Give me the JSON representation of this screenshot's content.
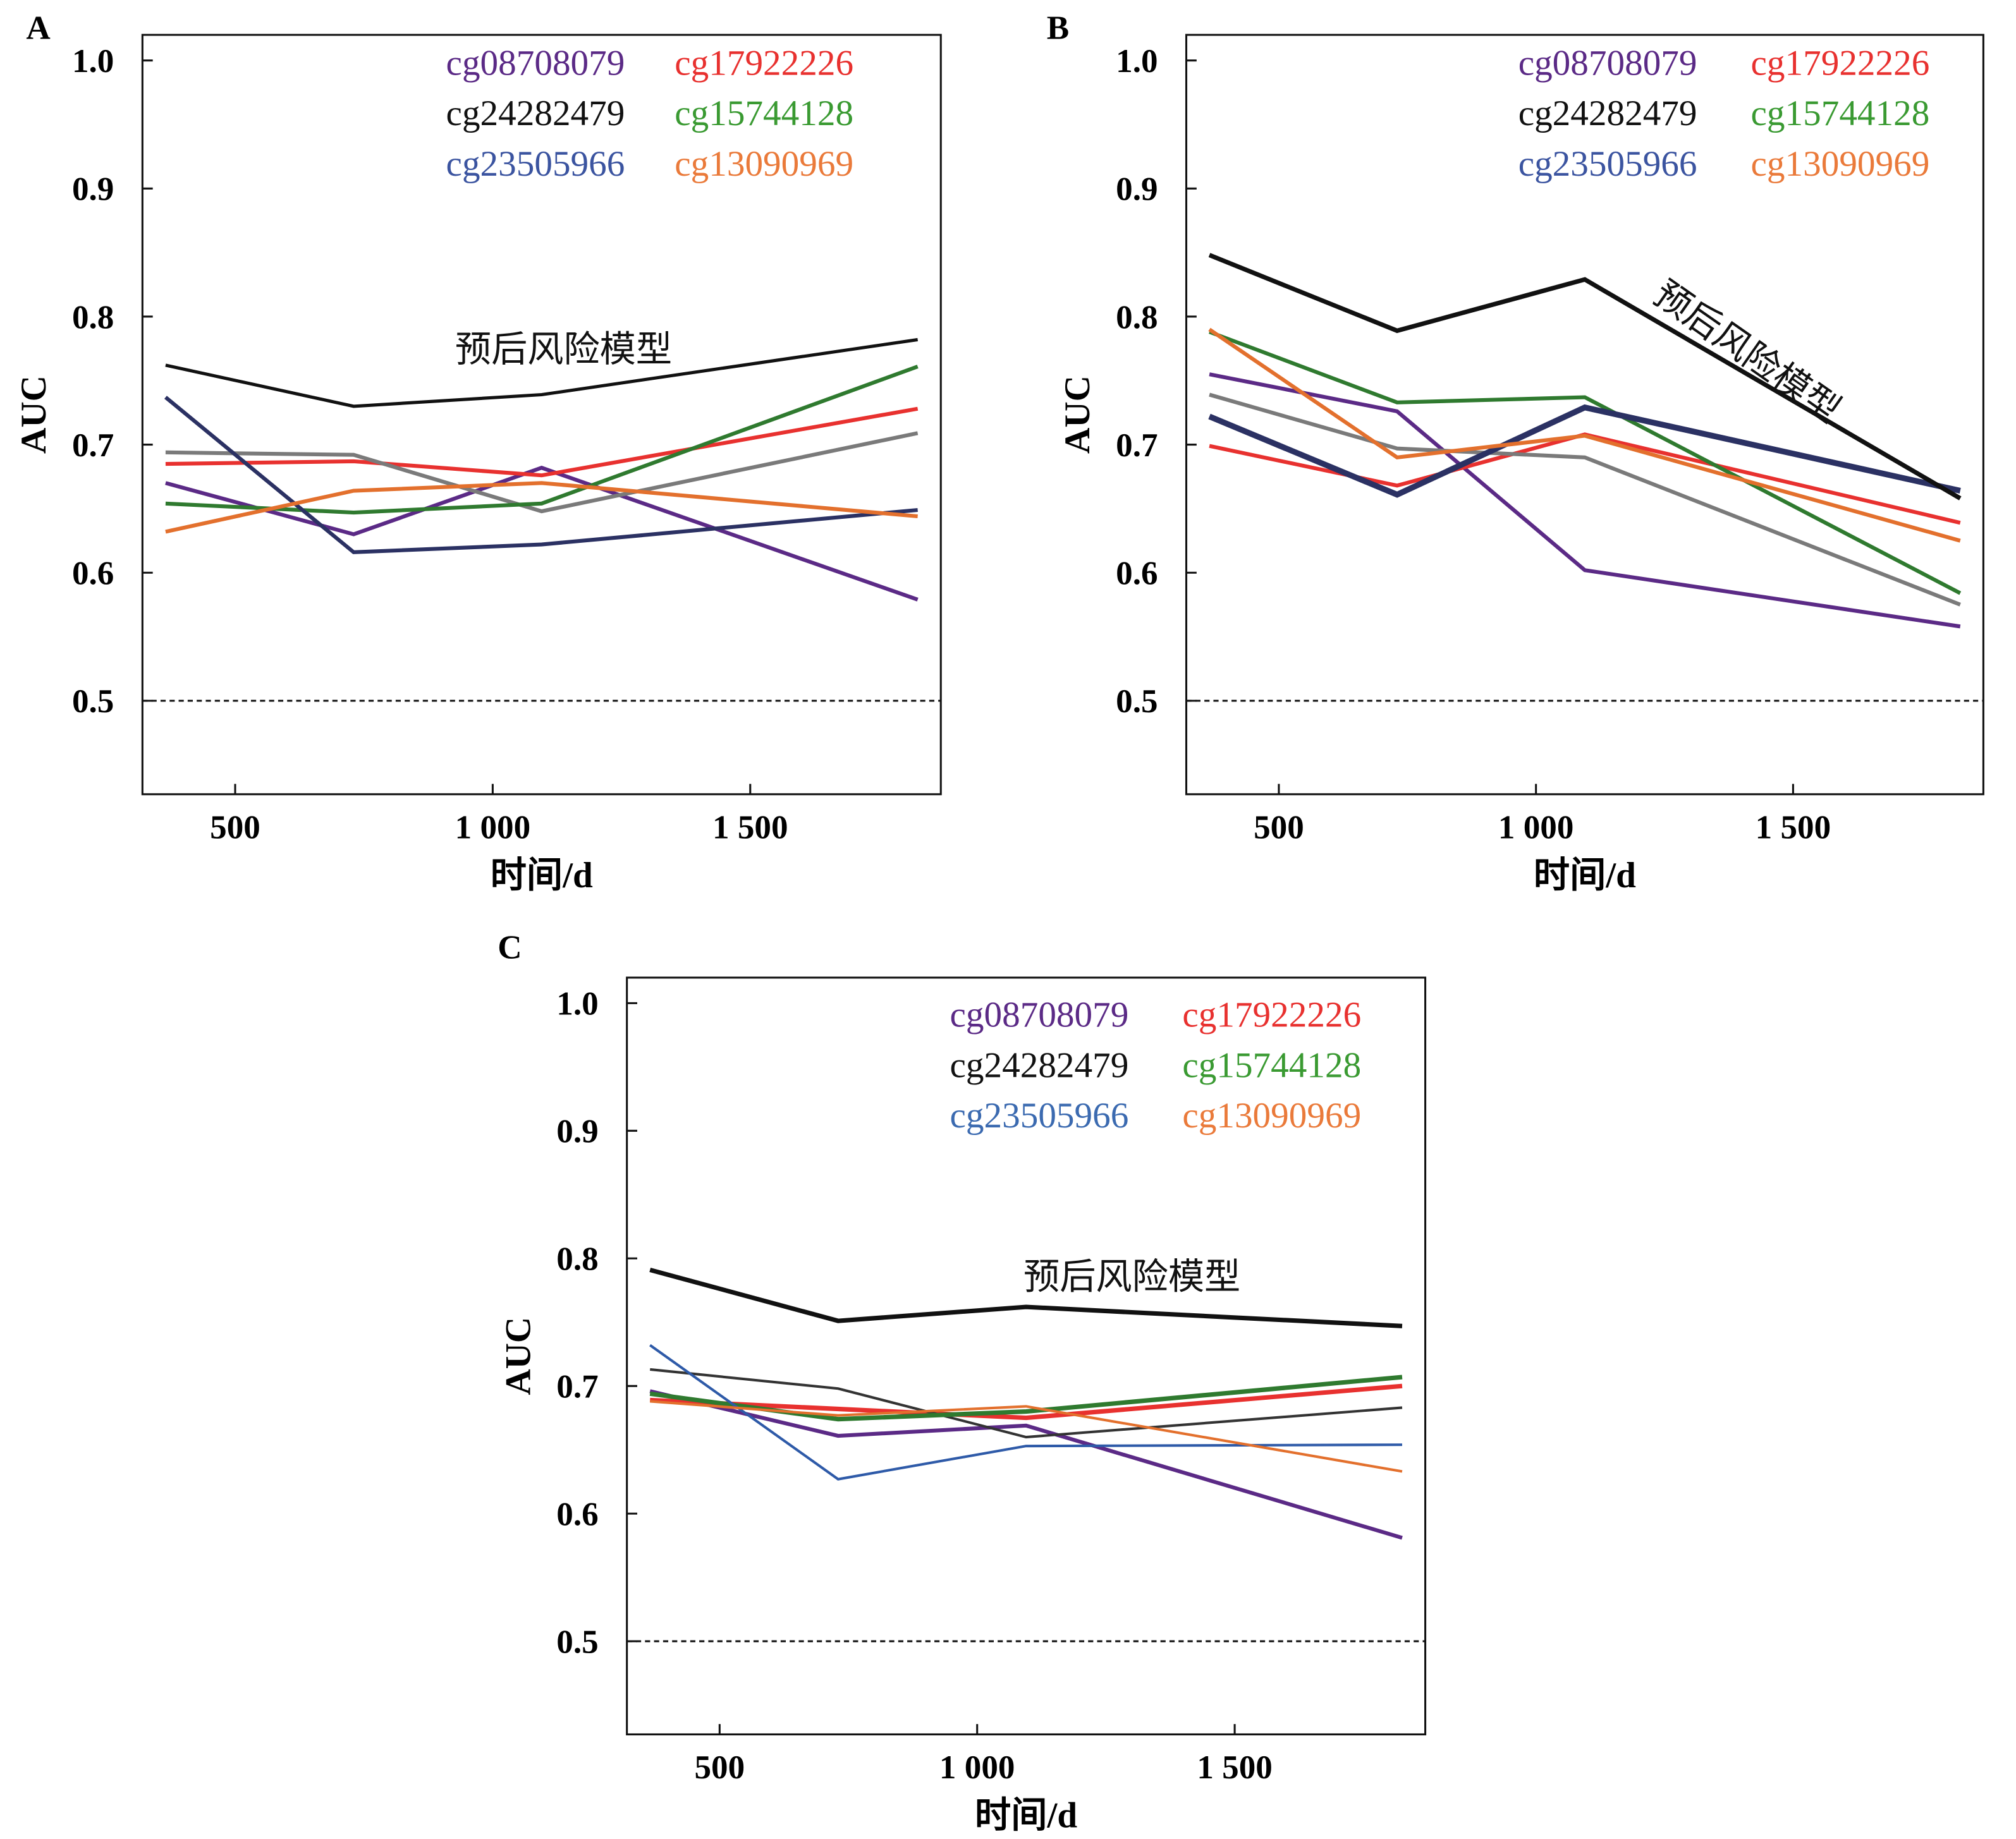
{
  "chart_data": [
    {
      "panel_label": "A",
      "type": "line",
      "xlabel": "时间/d",
      "ylabel": "AUC",
      "xlim": [
        320,
        1870
      ],
      "ylim": [
        0.427,
        1.02
      ],
      "x_ticks": [
        500,
        1000,
        1500
      ],
      "x_tick_labels": [
        "500",
        "1 000",
        "1 500"
      ],
      "y_ticks": [
        0.5,
        0.6,
        0.7,
        0.8,
        0.9,
        1.0
      ],
      "y_tick_labels": [
        "0.5",
        "0.6",
        "0.7",
        "0.8",
        "0.9",
        "1.0"
      ],
      "reference_line": 0.5,
      "grid": false,
      "legend_position": "top-right",
      "x": [
        365,
        730,
        1095,
        1825
      ],
      "annotation": "预后风险模型",
      "series": [
        {
          "name": "cg08708079",
          "color": "#5b2a86",
          "values": [
            0.67,
            0.63,
            0.682,
            0.579
          ]
        },
        {
          "name": "cg17922226",
          "color": "#e8312f",
          "values": [
            0.685,
            0.687,
            0.676,
            0.728
          ]
        },
        {
          "name": "cg24282479",
          "color": "#7a7a7a",
          "legend_color": "#111111",
          "values": [
            0.694,
            0.692,
            0.648,
            0.709
          ]
        },
        {
          "name": "cg15744128",
          "color": "#2f7a2f",
          "legend_color": "#3a9a32",
          "values": [
            0.654,
            0.647,
            0.654,
            0.761
          ]
        },
        {
          "name": "cg23505966",
          "color": "#2b3163",
          "legend_color": "#3b54a0",
          "values": [
            0.737,
            0.616,
            0.622,
            0.649
          ]
        },
        {
          "name": "cg13090969",
          "color": "#e3702d",
          "legend_color": "#ea7a3a",
          "values": [
            0.632,
            0.664,
            0.67,
            0.644
          ]
        },
        {
          "name": "预后风险模型",
          "color": "#111111",
          "values": [
            0.762,
            0.73,
            0.739,
            0.782
          ]
        }
      ]
    },
    {
      "panel_label": "B",
      "type": "line",
      "xlabel": "时间/d",
      "ylabel": "AUC",
      "xlim": [
        320,
        1870
      ],
      "ylim": [
        0.427,
        1.02
      ],
      "x_ticks": [
        500,
        1000,
        1500
      ],
      "x_tick_labels": [
        "500",
        "1 000",
        "1 500"
      ],
      "y_ticks": [
        0.5,
        0.6,
        0.7,
        0.8,
        0.9,
        1.0
      ],
      "y_tick_labels": [
        "0.5",
        "0.6",
        "0.7",
        "0.8",
        "0.9",
        "1.0"
      ],
      "reference_line": 0.5,
      "grid": false,
      "legend_position": "top-right",
      "x": [
        365,
        730,
        1095,
        1825
      ],
      "annotation": "预后风险模型",
      "series": [
        {
          "name": "cg08708079",
          "color": "#5b2a86",
          "values": [
            0.755,
            0.726,
            0.602,
            0.558
          ]
        },
        {
          "name": "cg17922226",
          "color": "#e8312f",
          "values": [
            0.699,
            0.668,
            0.708,
            0.639
          ]
        },
        {
          "name": "cg24282479",
          "color": "#7a7a7a",
          "legend_color": "#111111",
          "values": [
            0.739,
            0.697,
            0.69,
            0.575
          ]
        },
        {
          "name": "cg15744128",
          "color": "#2f7a2f",
          "legend_color": "#3a9a32",
          "values": [
            0.788,
            0.733,
            0.737,
            0.584
          ]
        },
        {
          "name": "cg23505966",
          "color": "#2b3163",
          "legend_color": "#3b54a0",
          "values": [
            0.722,
            0.661,
            0.729,
            0.664
          ]
        },
        {
          "name": "cg13090969",
          "color": "#e3702d",
          "legend_color": "#ea7a3a",
          "values": [
            0.79,
            0.69,
            0.707,
            0.625
          ]
        },
        {
          "name": "预后风险模型",
          "color": "#111111",
          "values": [
            0.848,
            0.789,
            0.829,
            0.658
          ]
        }
      ]
    },
    {
      "panel_label": "C",
      "type": "line",
      "xlabel": "时间/d",
      "ylabel": "AUC",
      "xlim": [
        320,
        1870
      ],
      "ylim": [
        0.427,
        1.02
      ],
      "x_ticks": [
        500,
        1000,
        1500
      ],
      "x_tick_labels": [
        "500",
        "1 000",
        "1 500"
      ],
      "y_ticks": [
        0.5,
        0.6,
        0.7,
        0.8,
        0.9,
        1.0
      ],
      "y_tick_labels": [
        "0.5",
        "0.6",
        "0.7",
        "0.8",
        "0.9",
        "1.0"
      ],
      "reference_line": 0.5,
      "grid": false,
      "legend_position": "top-right",
      "x": [
        365,
        730,
        1095,
        1825
      ],
      "annotation": "预后风险模型",
      "series": [
        {
          "name": "cg08708079",
          "color": "#5b2a86",
          "values": [
            0.696,
            0.661,
            0.669,
            0.581
          ]
        },
        {
          "name": "cg17922226",
          "color": "#e8312f",
          "values": [
            0.689,
            0.682,
            0.675,
            0.7
          ]
        },
        {
          "name": "cg24282479",
          "color": "#333333",
          "legend_color": "#111111",
          "values": [
            0.713,
            0.698,
            0.66,
            0.683
          ]
        },
        {
          "name": "cg15744128",
          "color": "#2f7a2f",
          "legend_color": "#3a9a32",
          "values": [
            0.694,
            0.674,
            0.68,
            0.707
          ]
        },
        {
          "name": "cg23505966",
          "color": "#2e5aa8",
          "legend_color": "#3b6ab0",
          "values": [
            0.732,
            0.627,
            0.653,
            0.654
          ]
        },
        {
          "name": "cg13090969",
          "color": "#e3702d",
          "legend_color": "#ea7a3a",
          "values": [
            0.688,
            0.677,
            0.684,
            0.633
          ]
        },
        {
          "name": "预后风险模型",
          "color": "#111111",
          "values": [
            0.791,
            0.751,
            0.762,
            0.747
          ]
        }
      ]
    }
  ]
}
